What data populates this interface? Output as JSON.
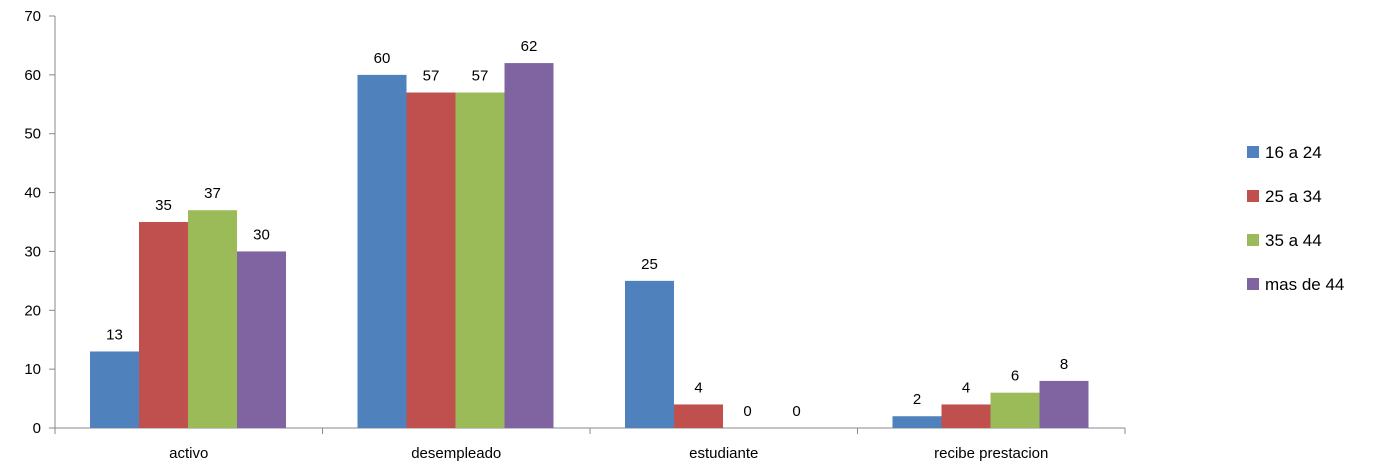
{
  "chart_data": {
    "type": "bar",
    "categories": [
      "activo",
      "desempleado",
      "estudiante",
      "recibe prestacion"
    ],
    "series": [
      {
        "name": "16 a 24",
        "values": [
          13,
          60,
          25,
          2
        ],
        "color": "#4F81BD"
      },
      {
        "name": "25 a 34",
        "values": [
          35,
          57,
          4,
          4
        ],
        "color": "#C0504D"
      },
      {
        "name": "35 a 44",
        "values": [
          37,
          57,
          0,
          6
        ],
        "color": "#9BBB59"
      },
      {
        "name": "mas de 44",
        "values": [
          30,
          62,
          0,
          8
        ],
        "color": "#8064A2"
      }
    ],
    "ylim": [
      0,
      70
    ],
    "yticks": [
      0,
      10,
      20,
      30,
      40,
      50,
      60,
      70
    ],
    "data_labels": true,
    "grid": false,
    "legend_position": "right",
    "title": "",
    "xlabel": "",
    "ylabel": "",
    "axis_color": "#888888"
  }
}
